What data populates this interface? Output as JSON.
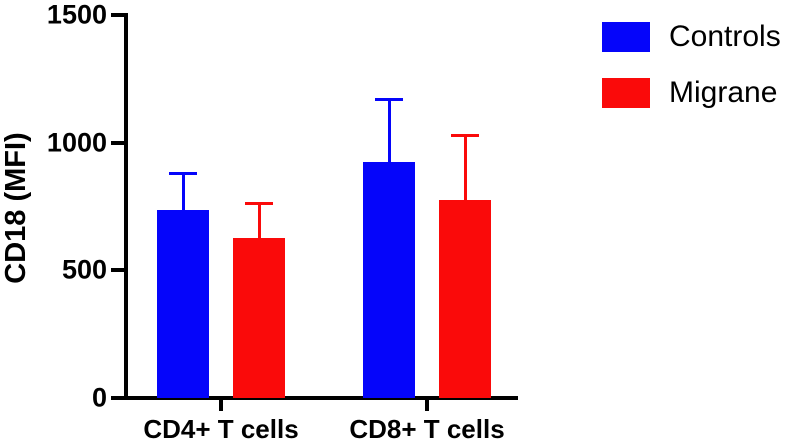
{
  "chart_data": {
    "type": "bar",
    "title": "",
    "xlabel": "",
    "ylabel": "CD18 (MFI)",
    "ylim": [
      0,
      1500
    ],
    "yticks": [
      0,
      500,
      1000,
      1500
    ],
    "categories": [
      "CD4+ T cells",
      "CD8+ T cells"
    ],
    "series": [
      {
        "name": "Controls",
        "color": "#0505fa",
        "values": [
          735,
          925
        ],
        "errors": [
          145,
          245
        ]
      },
      {
        "name": "Migrane",
        "color": "#fa0a0a",
        "values": [
          625,
          775
        ],
        "errors": [
          135,
          255
        ]
      }
    ],
    "error_bars": "upper SD only, caps",
    "grid": false,
    "legend_position": "top-right",
    "plot_background": "#ffffff"
  }
}
